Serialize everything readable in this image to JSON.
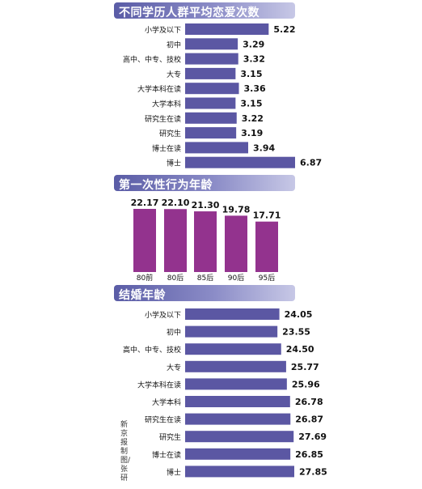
{
  "chart_data": [
    {
      "type": "bar",
      "orientation": "horizontal",
      "title": "不同学历人群平均恋爱次数",
      "categories": [
        "小学及以下",
        "初中",
        "高中、中专、技校",
        "大专",
        "大学本科在读",
        "大学本科",
        "研究生在读",
        "研究生",
        "博士在读",
        "博士"
      ],
      "values": [
        5.22,
        3.29,
        3.32,
        3.15,
        3.36,
        3.15,
        3.22,
        3.19,
        3.94,
        6.87
      ],
      "value_labels": [
        "5.22",
        "3.29",
        "3.32",
        "3.15",
        "3.36",
        "3.15",
        "3.22",
        "3.19",
        "3.94",
        "6.87"
      ]
    },
    {
      "type": "bar",
      "orientation": "vertical",
      "title": "第一次性行为年龄",
      "categories": [
        "80前",
        "80后",
        "85后",
        "90后",
        "95后"
      ],
      "values": [
        22.17,
        22.1,
        21.3,
        19.78,
        17.71
      ],
      "value_labels": [
        "22.17",
        "22.10",
        "21.30",
        "19.78",
        "17.71"
      ]
    },
    {
      "type": "bar",
      "orientation": "horizontal",
      "title": "结婚年龄",
      "categories": [
        "小学及以下",
        "初中",
        "高中、中专、技校",
        "大专",
        "大学本科在读",
        "大学本科",
        "研究生在读",
        "研究生",
        "博士在读",
        "博士"
      ],
      "values": [
        24.05,
        23.55,
        24.5,
        25.77,
        25.96,
        26.78,
        26.87,
        27.69,
        26.85,
        27.85
      ],
      "value_labels": [
        "24.05",
        "23.55",
        "24.50",
        "25.77",
        "25.96",
        "26.78",
        "26.87",
        "27.69",
        "26.85",
        "27.85"
      ]
    }
  ],
  "credit": "新京报制图/张研",
  "colors": {
    "bar": "#5b57a3",
    "column": "#93338e",
    "header": "#6466ad"
  }
}
